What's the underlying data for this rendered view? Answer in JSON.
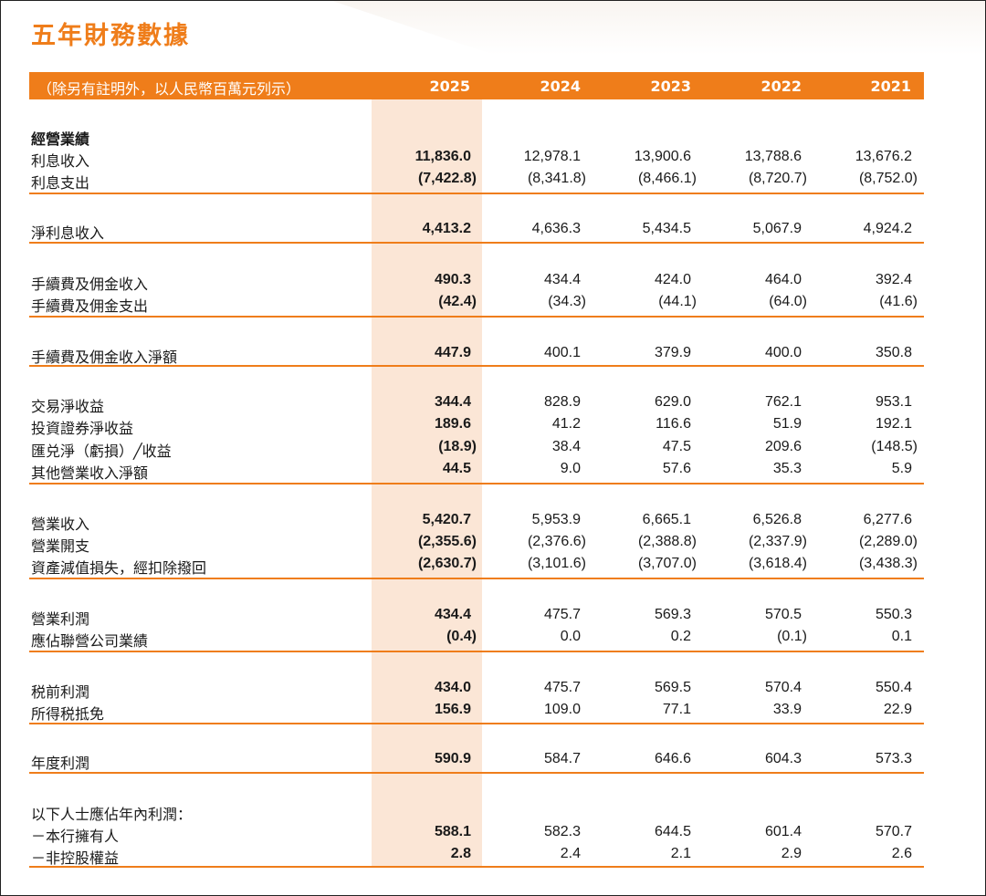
{
  "title": "五年財務數據",
  "header": {
    "note": "（除另有註明外，以人民幣百萬元列示）",
    "years": [
      "2025",
      "2024",
      "2023",
      "2022",
      "2021"
    ]
  },
  "sections": [
    {
      "heading": "經營業績",
      "rows": [
        {
          "label": "利息收入",
          "values": [
            "11,836.0",
            "12,978.1",
            "13,900.6",
            "13,788.6",
            "13,676.2"
          ]
        },
        {
          "label": "利息支出",
          "values": [
            "(7,422.8)",
            "(8,341.8)",
            "(8,466.1)",
            "(8,720.7)",
            "(8,752.0)"
          ]
        }
      ]
    },
    {
      "rows": [
        {
          "label": "淨利息收入",
          "values": [
            "4,413.2",
            "4,636.3",
            "5,434.5",
            "5,067.9",
            "4,924.2"
          ]
        }
      ]
    },
    {
      "rows": [
        {
          "label": "手續費及佣金收入",
          "values": [
            "490.3",
            "434.4",
            "424.0",
            "464.0",
            "392.4"
          ]
        },
        {
          "label": "手續費及佣金支出",
          "values": [
            "(42.4)",
            "(34.3)",
            "(44.1)",
            "(64.0)",
            "(41.6)"
          ]
        }
      ]
    },
    {
      "rows": [
        {
          "label": "手續費及佣金收入淨額",
          "values": [
            "447.9",
            "400.1",
            "379.9",
            "400.0",
            "350.8"
          ]
        }
      ]
    },
    {
      "rows": [
        {
          "label": "交易淨收益",
          "values": [
            "344.4",
            "828.9",
            "629.0",
            "762.1",
            "953.1"
          ]
        },
        {
          "label": "投資證券淨收益",
          "values": [
            "189.6",
            "41.2",
            "116.6",
            "51.9",
            "192.1"
          ]
        },
        {
          "label": "匯兑淨（虧損）╱收益",
          "values": [
            "(18.9)",
            "38.4",
            "47.5",
            "209.6",
            "(148.5)"
          ]
        },
        {
          "label": "其他營業收入淨額",
          "values": [
            "44.5",
            "9.0",
            "57.6",
            "35.3",
            "5.9"
          ]
        }
      ]
    },
    {
      "rows": [
        {
          "label": "營業收入",
          "values": [
            "5,420.7",
            "5,953.9",
            "6,665.1",
            "6,526.8",
            "6,277.6"
          ]
        },
        {
          "label": "營業開支",
          "values": [
            "(2,355.6)",
            "(2,376.6)",
            "(2,388.8)",
            "(2,337.9)",
            "(2,289.0)"
          ]
        },
        {
          "label": "資產減值損失，經扣除撥回",
          "values": [
            "(2,630.7)",
            "(3,101.6)",
            "(3,707.0)",
            "(3,618.4)",
            "(3,438.3)"
          ]
        }
      ]
    },
    {
      "rows": [
        {
          "label": "營業利潤",
          "values": [
            "434.4",
            "475.7",
            "569.3",
            "570.5",
            "550.3"
          ]
        },
        {
          "label": "應佔聯營公司業績",
          "values": [
            "(0.4)",
            "0.0",
            "0.2",
            "(0.1)",
            "0.1"
          ]
        }
      ]
    },
    {
      "rows": [
        {
          "label": "税前利潤",
          "values": [
            "434.0",
            "475.7",
            "569.5",
            "570.4",
            "550.4"
          ]
        },
        {
          "label": "所得税抵免",
          "values": [
            "156.9",
            "109.0",
            "77.1",
            "33.9",
            "22.9"
          ]
        }
      ]
    },
    {
      "rows": [
        {
          "label": "年度利潤",
          "values": [
            "590.9",
            "584.7",
            "646.6",
            "604.3",
            "573.3"
          ]
        }
      ]
    },
    {
      "heading": "以下人士應佔年內利潤：",
      "rows": [
        {
          "label": "－本行擁有人",
          "values": [
            "588.1",
            "582.3",
            "644.5",
            "601.4",
            "570.7"
          ]
        },
        {
          "label": "－非控股權益",
          "values": [
            "2.8",
            "2.4",
            "2.1",
            "2.9",
            "2.6"
          ]
        }
      ]
    }
  ],
  "colors": {
    "accent": "#ef7d1a",
    "highlight": "#fbe6d6"
  }
}
